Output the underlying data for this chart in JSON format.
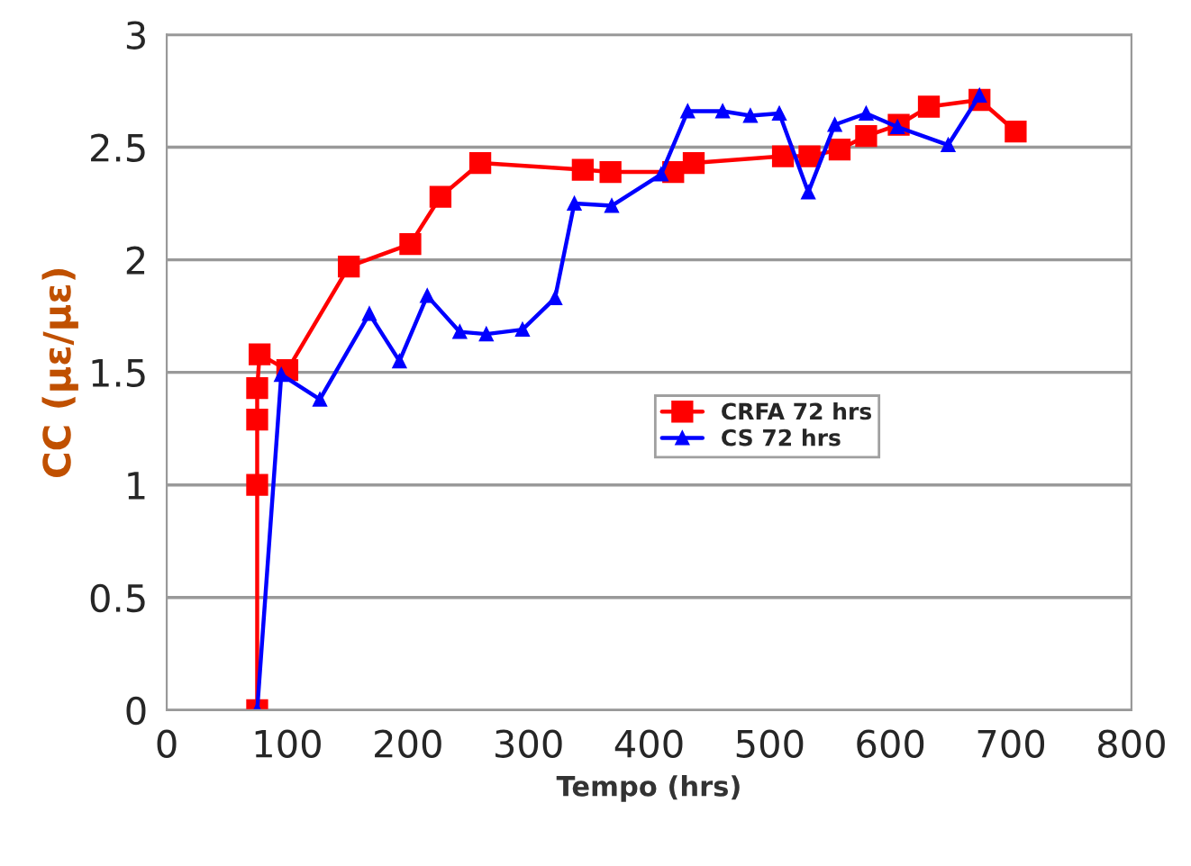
{
  "chart_data": {
    "type": "line",
    "xlabel": "Tempo (hrs)",
    "ylabel": "CC (με/με)",
    "xlim": [
      0,
      800
    ],
    "xticks": [
      0,
      100,
      200,
      300,
      400,
      500,
      600,
      700,
      800
    ],
    "ylim": [
      0,
      3
    ],
    "yticks": [
      0,
      0.5,
      1,
      1.5,
      2,
      2.5,
      3
    ],
    "grid": "y",
    "legend": "right",
    "line_style": "solid",
    "series": [
      {
        "name": "CRFA 72 hrs",
        "color": "#ff0000",
        "marker": "square",
        "x": [
          75,
          75,
          75,
          75,
          77,
          100,
          151,
          202,
          227,
          260,
          345,
          368,
          420,
          437,
          511,
          533,
          558,
          580,
          607,
          632,
          674,
          704
        ],
        "values": [
          0,
          1.0,
          1.29,
          1.43,
          1.58,
          1.51,
          1.97,
          2.07,
          2.28,
          2.43,
          2.4,
          2.39,
          2.39,
          2.43,
          2.46,
          2.46,
          2.49,
          2.55,
          2.6,
          2.68,
          2.71,
          2.57
        ]
      },
      {
        "name": "CS 72 hrs",
        "color": "#0000ff",
        "marker": "triangle",
        "x": [
          75,
          95,
          127,
          168,
          193,
          216,
          243,
          265,
          295,
          322,
          338,
          369,
          410,
          432,
          461,
          484,
          508,
          532,
          554,
          580,
          606,
          648,
          674
        ],
        "values": [
          0,
          1.49,
          1.38,
          1.76,
          1.55,
          1.84,
          1.68,
          1.67,
          1.69,
          1.83,
          2.25,
          2.24,
          2.38,
          2.66,
          2.66,
          2.64,
          2.65,
          2.3,
          2.6,
          2.65,
          2.59,
          2.51,
          2.73
        ]
      }
    ]
  }
}
